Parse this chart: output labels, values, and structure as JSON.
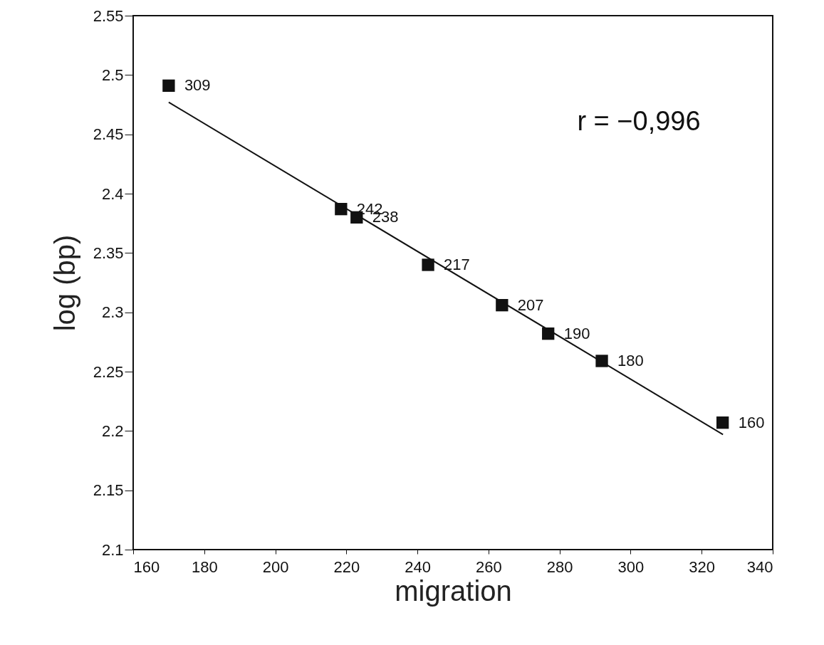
{
  "chart_data": {
    "type": "scatter",
    "xlabel": "migration",
    "ylabel": "log (bp)",
    "xlim": [
      160,
      340
    ],
    "ylim": [
      2.1,
      2.55
    ],
    "xticks": [
      160,
      180,
      200,
      220,
      240,
      260,
      280,
      300,
      320,
      340
    ],
    "yticks": [
      2.1,
      2.15,
      2.2,
      2.25,
      2.3,
      2.35,
      2.4,
      2.45,
      2.5,
      2.55
    ],
    "grid": false,
    "annotations": [
      "r = −0,996",
      {
        "text": "309",
        "x": 170,
        "y": 2.491
      },
      {
        "text": "242",
        "x": 218.5,
        "y": 2.387
      },
      {
        "text": "238",
        "x": 222.9,
        "y": 2.38
      },
      {
        "text": "217",
        "x": 243,
        "y": 2.34
      },
      {
        "text": "207",
        "x": 263.8,
        "y": 2.306
      },
      {
        "text": "190",
        "x": 276.8,
        "y": 2.282
      },
      {
        "text": "180",
        "x": 291.9,
        "y": 2.259
      },
      {
        "text": "160",
        "x": 325.9,
        "y": 2.207
      }
    ],
    "series": [
      {
        "color": "#111111",
        "marker": "square",
        "x": [
          170,
          218.5,
          222.9,
          243,
          263.8,
          276.8,
          291.9,
          325.9
        ],
        "values": [
          2.491,
          2.387,
          2.38,
          2.34,
          2.306,
          2.282,
          2.259,
          2.207
        ]
      },
      {
        "type": "line",
        "color": "#111111",
        "x": [
          170,
          326
        ],
        "values": [
          2.477,
          2.197
        ]
      }
    ]
  }
}
